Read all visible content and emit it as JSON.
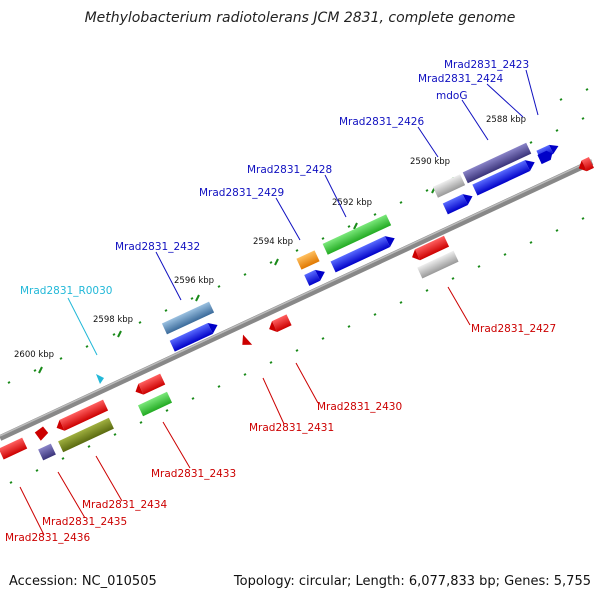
{
  "title": "Methylobacterium radiotolerans JCM 2831, complete genome",
  "accession": "Accession: NC_010505",
  "summary": "Topology: circular; Length: 6,077,833 bp; Genes: 5,755",
  "colors": {
    "plus_label": "#1010c0",
    "minus_label": "#cc0000",
    "rna_label": "#22b8d8",
    "backbone": "#888888",
    "tick": "#1a8a1a"
  },
  "scale_labels": [
    "2588 kbp",
    "2590 kbp",
    "2592 kbp",
    "2594 kbp",
    "2596 kbp",
    "2598 kbp",
    "2600 kbp"
  ],
  "gene_labels": {
    "plus": [
      "Mrad2831_2423",
      "Mrad2831_2424",
      "mdoG",
      "Mrad2831_2426",
      "Mrad2831_2428",
      "Mrad2831_2429",
      "Mrad2831_2432"
    ],
    "rna": [
      "Mrad2831_R0030"
    ],
    "minus": [
      "Mrad2831_2427",
      "Mrad2831_2430",
      "Mrad2831_2431",
      "Mrad2831_2433",
      "Mrad2831_2434",
      "Mrad2831_2435",
      "Mrad2831_2436"
    ]
  }
}
